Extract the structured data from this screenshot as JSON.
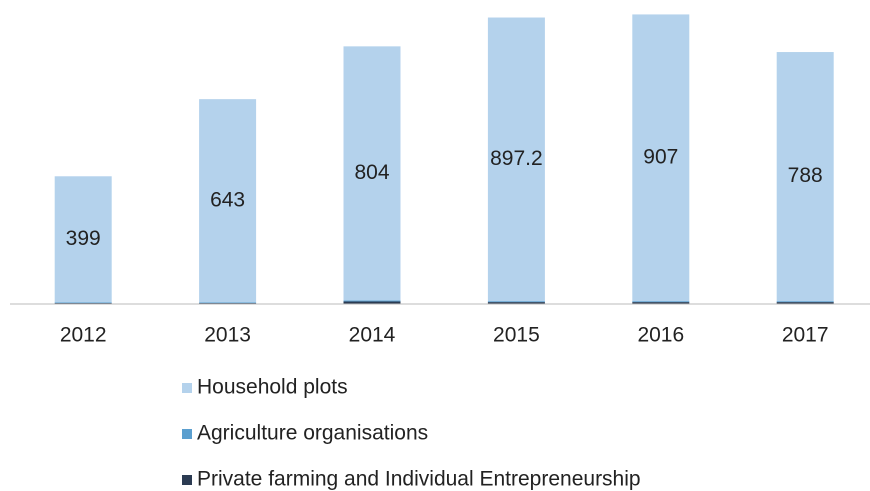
{
  "chart_data": {
    "type": "stacked_bar",
    "categories": [
      "2012",
      "2013",
      "2014",
      "2015",
      "2016",
      "2017"
    ],
    "series": [
      {
        "name": "Household plots",
        "color": "#b4d2ec",
        "values": [
          399,
          643,
          804,
          897.2,
          907,
          788
        ]
      },
      {
        "name": "Agriculture organisations",
        "color": "#5b9fcf",
        "values": [
          2,
          2,
          3,
          3,
          3,
          3
        ]
      },
      {
        "name": "Private farming and Individual Entrepreneurship",
        "color": "#2b3b52",
        "values": [
          3,
          3,
          8,
          6,
          6,
          6
        ]
      }
    ],
    "ylim": [
      0,
      930
    ]
  }
}
